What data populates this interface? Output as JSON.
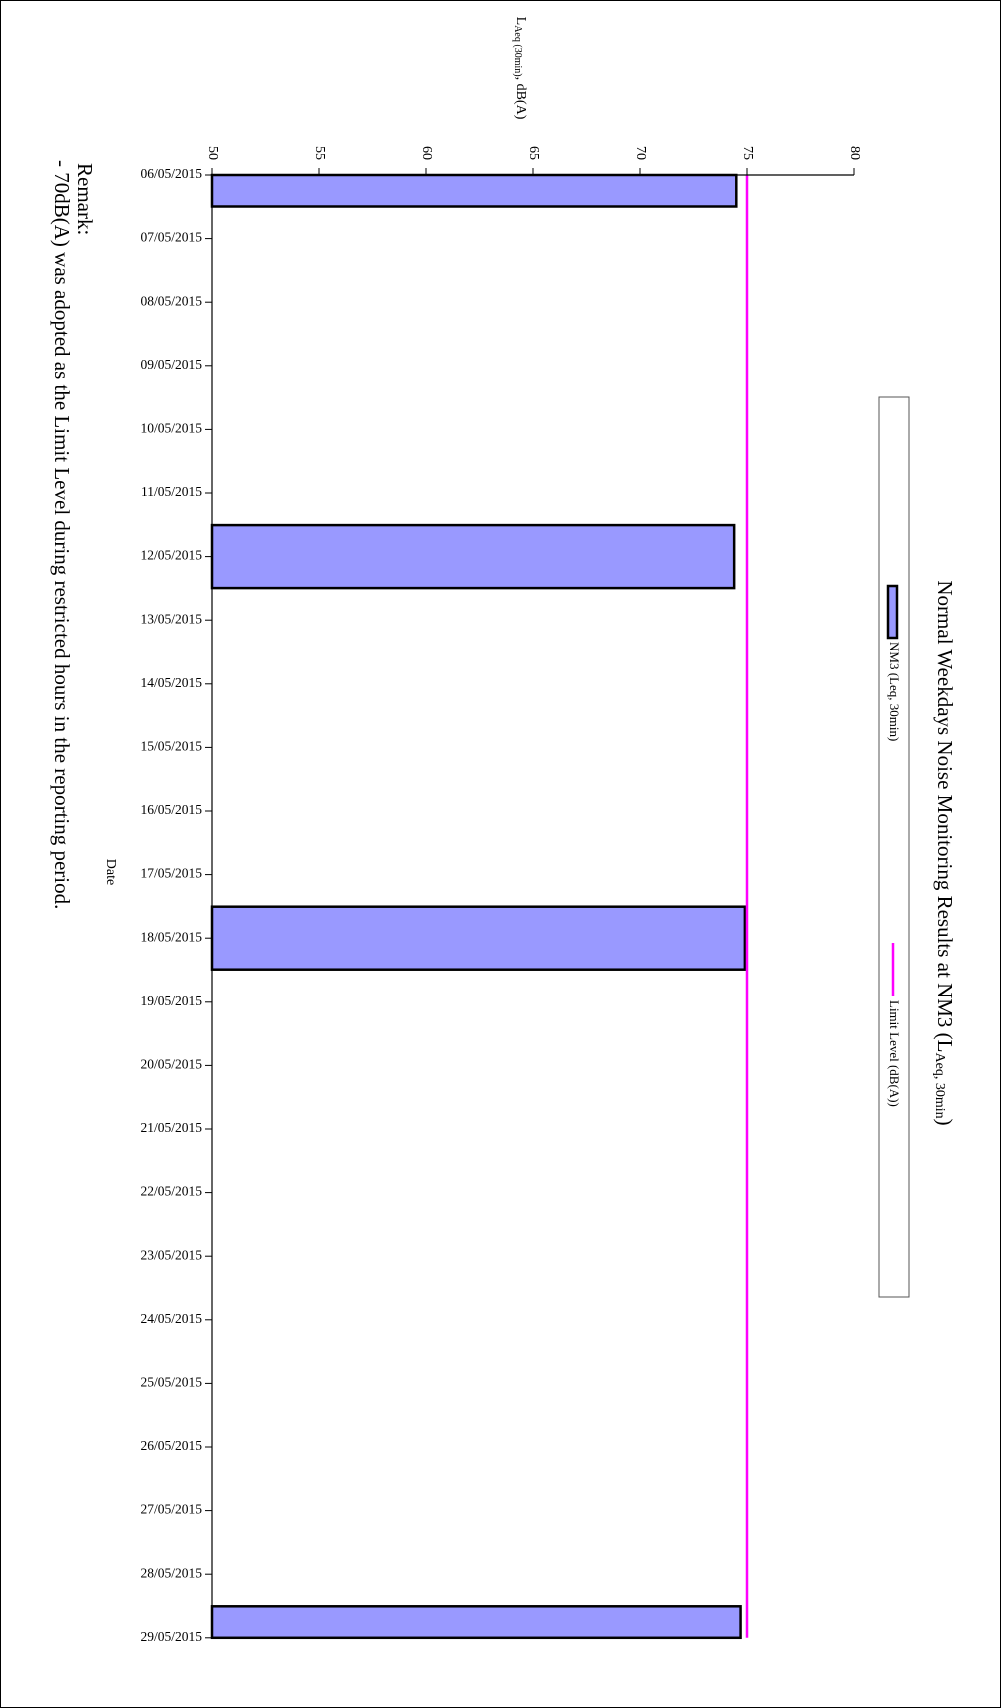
{
  "chart_data": {
    "type": "bar",
    "orientation": "horizontal",
    "title_main": "Normal Weekdays Noise Monitoring Results at NM3 (L",
    "title_sub": "Aeq, 30min",
    "title_end": ")",
    "value_axis_label_main": "L",
    "value_axis_label_sub": "Aeq (30min)",
    "value_axis_label_end": ", dB(A)",
    "category_axis_label": "Date",
    "xlim": [
      50,
      80
    ],
    "ticks": [
      50,
      55,
      60,
      65,
      70,
      75,
      80
    ],
    "categories": [
      "06/05/2015",
      "07/05/2015",
      "08/05/2015",
      "09/05/2015",
      "10/05/2015",
      "11/05/2015",
      "12/05/2015",
      "13/05/2015",
      "14/05/2015",
      "15/05/2015",
      "16/05/2015",
      "17/05/2015",
      "18/05/2015",
      "19/05/2015",
      "20/05/2015",
      "21/05/2015",
      "22/05/2015",
      "23/05/2015",
      "24/05/2015",
      "25/05/2015",
      "26/05/2015",
      "27/05/2015",
      "28/05/2015",
      "29/05/2015"
    ],
    "series": [
      {
        "name": "NM3 (Leq, 30min)",
        "color": "#9999ff",
        "points": [
          {
            "date": "06/05/2015",
            "value": 74.5
          },
          {
            "date": "12/05/2015",
            "value": 74.4
          },
          {
            "date": "18/05/2015",
            "value": 74.9
          },
          {
            "date": "29/05/2015",
            "value": 74.7
          }
        ]
      },
      {
        "name": "Limit Level (dB(A))",
        "type": "line",
        "color": "#ff00ff",
        "value": 75
      }
    ],
    "legend": {
      "items": [
        {
          "label": "NM3 (Leq, 30min)",
          "swatch": "bar",
          "color": "#9999ff"
        },
        {
          "label": "Limit Level (dB(A))",
          "swatch": "line",
          "color": "#ff00ff"
        }
      ]
    },
    "grid": false
  },
  "remark": {
    "heading": "Remark:",
    "text": "- 70dB(A) was adopted as the Limit Level during restricted hours in the reporting period."
  }
}
